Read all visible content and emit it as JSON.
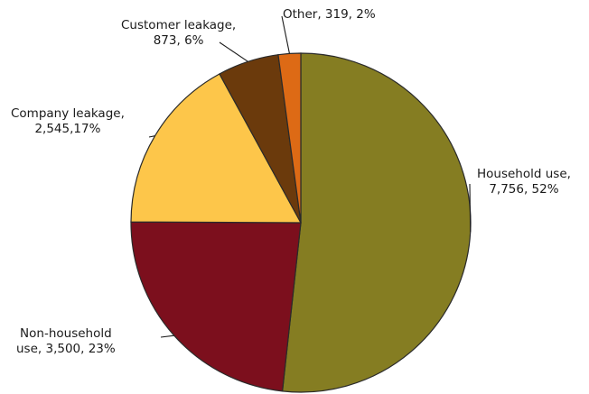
{
  "chart_data": {
    "type": "pie",
    "title": "",
    "slices": [
      {
        "name": "Household use",
        "value": 7756,
        "percent": 52,
        "color": "#857d22",
        "label_lines": [
          "Household use,",
          "7,756, 52%"
        ]
      },
      {
        "name": "Non-household use",
        "value": 3500,
        "percent": 23,
        "color": "#7c0f1d",
        "label_lines": [
          "Non-household",
          "use, 3,500, 23%"
        ]
      },
      {
        "name": "Company leakage",
        "value": 2545,
        "percent": 17,
        "color": "#fdc64a",
        "label_lines": [
          "Company leakage,",
          "2,545,17%"
        ]
      },
      {
        "name": "Customer leakage",
        "value": 873,
        "percent": 6,
        "color": "#6b3a0c",
        "label_lines": [
          "Customer leakage,",
          "873, 6%"
        ]
      },
      {
        "name": "Other",
        "value": 319,
        "percent": 2,
        "color": "#dd6a15",
        "label_lines": [
          "Other, 319, 2%"
        ]
      }
    ],
    "start_angle_deg": 0,
    "direction": "clockwise",
    "legend": "none"
  }
}
